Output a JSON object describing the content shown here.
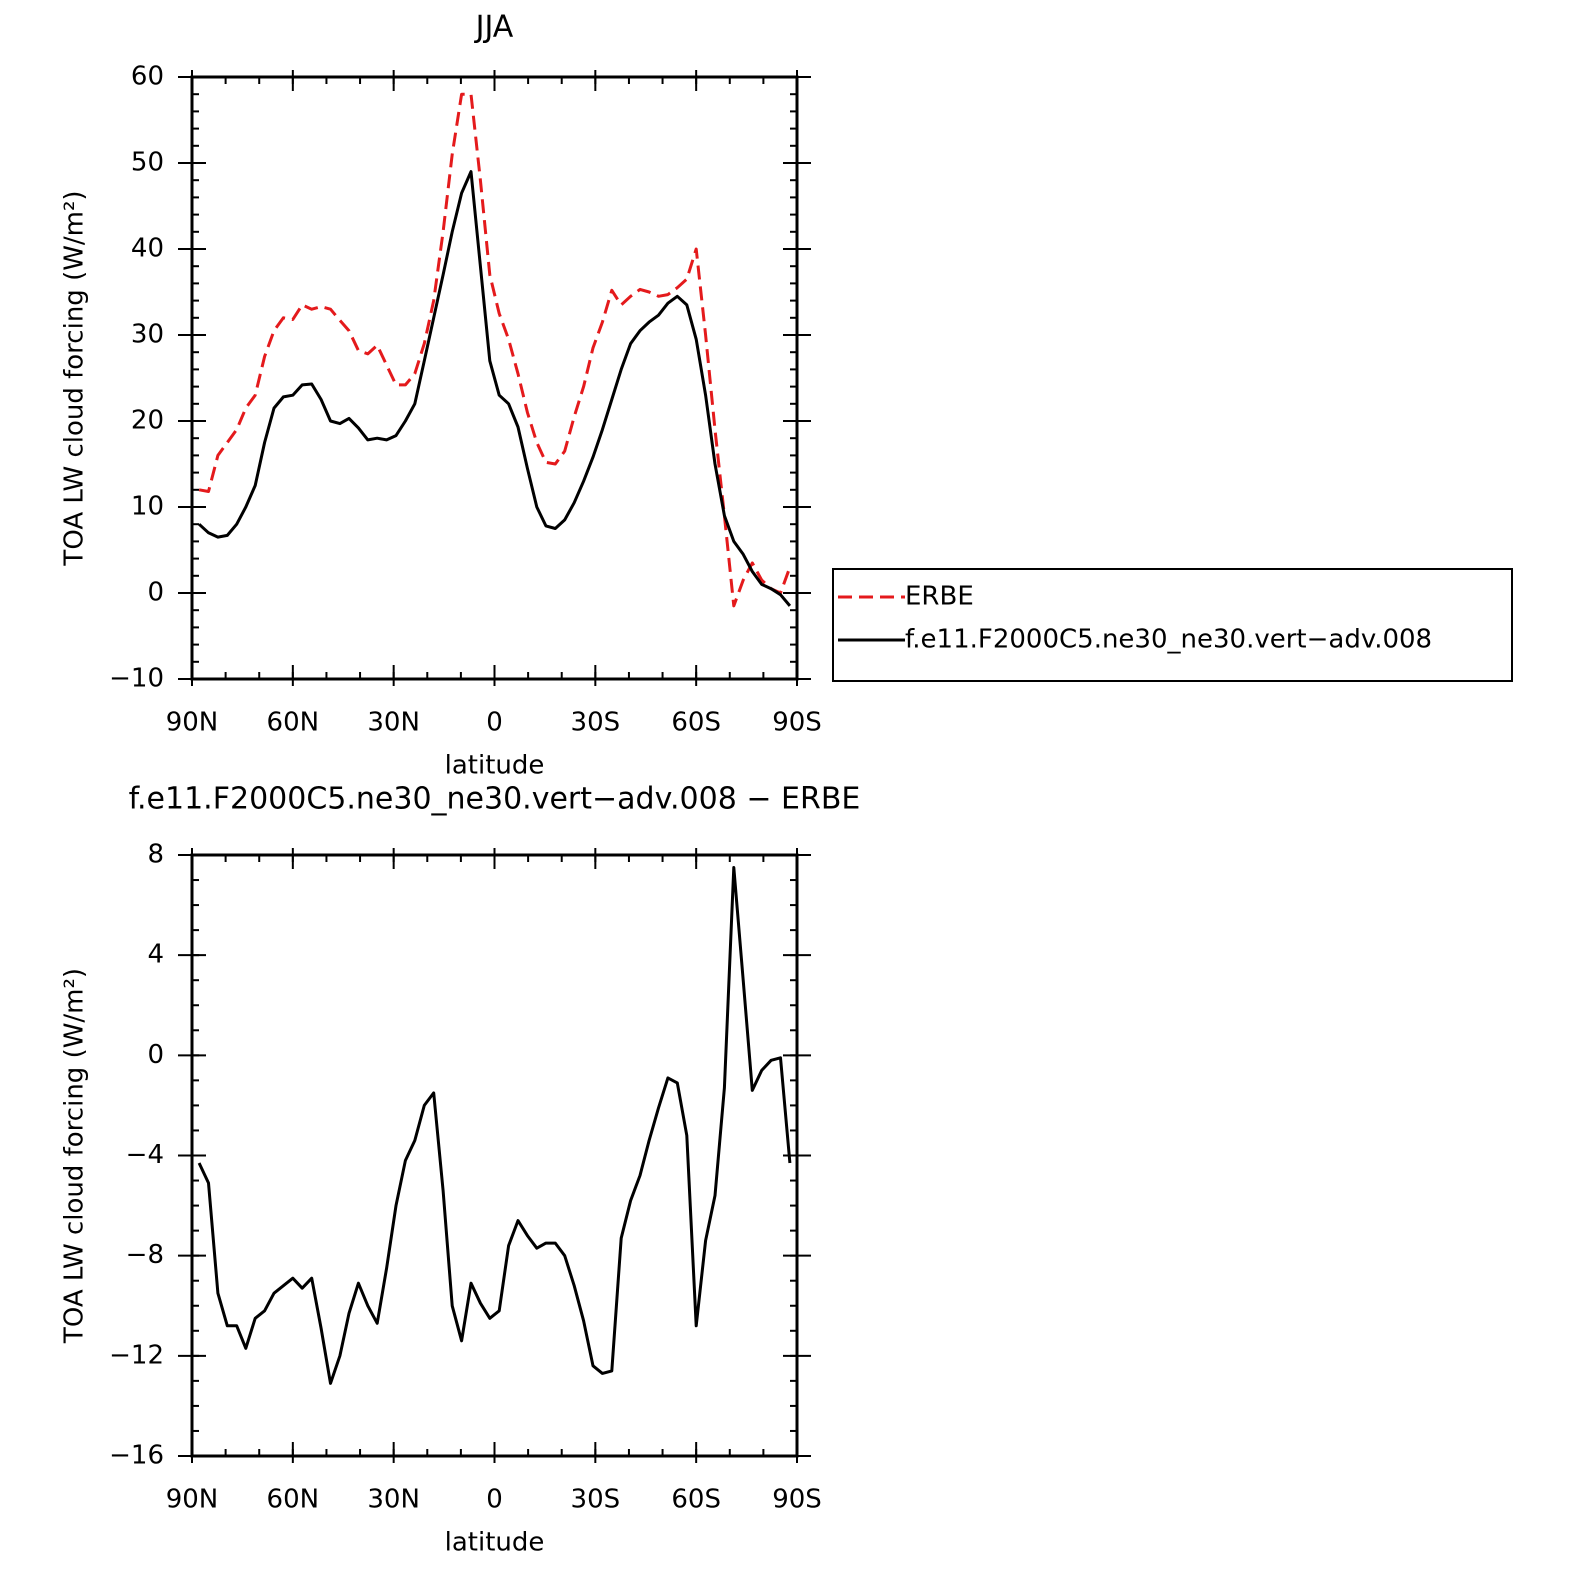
{
  "chart_data": [
    {
      "type": "line",
      "title": "JJA",
      "xlabel": "latitude",
      "ylabel": "TOA LW cloud forcing (W/m²)",
      "xlim": [
        90,
        -90
      ],
      "xticks": [
        {
          "value": 90,
          "label": "90N"
        },
        {
          "value": 60,
          "label": "60N"
        },
        {
          "value": 30,
          "label": "30N"
        },
        0,
        {
          "value": -30,
          "label": "30S"
        },
        {
          "value": -60,
          "label": "60S"
        },
        {
          "value": -90,
          "label": "90S"
        }
      ],
      "ylim": [
        -10,
        60
      ],
      "yticks": [
        {
          "value": -10,
          "label": "−10"
        },
        0,
        10,
        20,
        30,
        40,
        50,
        60
      ],
      "minor_tick_step": {
        "x": 10,
        "y": 2
      },
      "legend": "right",
      "x": [
        87.9,
        85.1,
        82.3,
        79.5,
        76.7,
        74.0,
        71.2,
        68.4,
        65.6,
        62.8,
        60.0,
        57.2,
        54.4,
        51.6,
        48.8,
        46.0,
        43.3,
        40.5,
        37.7,
        34.9,
        32.1,
        29.3,
        26.5,
        23.7,
        20.9,
        18.1,
        15.3,
        12.6,
        9.8,
        7.0,
        4.2,
        1.4,
        -1.4,
        -4.2,
        -7.0,
        -9.8,
        -12.6,
        -15.3,
        -18.1,
        -20.9,
        -23.7,
        -26.5,
        -29.3,
        -32.1,
        -34.9,
        -37.7,
        -40.5,
        -43.3,
        -46.0,
        -48.8,
        -51.6,
        -54.4,
        -57.2,
        -60.0,
        -62.8,
        -65.6,
        -68.4,
        -71.2,
        -74.0,
        -76.7,
        -79.5,
        -82.3,
        -85.1,
        -87.9
      ],
      "series": [
        {
          "name": "ERBE",
          "color": "#e41a1c",
          "dash": true,
          "values": [
            12,
            11.8,
            16,
            17.5,
            19,
            21.5,
            23,
            27.5,
            30.5,
            32,
            31.8,
            33.5,
            33,
            33.3,
            33,
            31.7,
            30.5,
            28.2,
            27.8,
            28.8,
            26.5,
            24.2,
            24.2,
            25.5,
            29,
            34,
            42,
            51,
            58,
            58,
            48,
            37,
            32.5,
            29.5,
            25.5,
            21,
            17.5,
            15.2,
            15,
            16.5,
            20.5,
            24,
            28.5,
            31.5,
            35.2,
            33.5,
            34.5,
            35.3,
            35,
            34.5,
            34.7,
            35.5,
            36.5,
            40,
            30,
            19,
            9,
            -1.5,
            1.5,
            3.5,
            1.5,
            0.5,
            0,
            3
          ]
        },
        {
          "name": "f.e11.F2000C5.ne30_ne30.vert−adv.008",
          "color": "#000000",
          "dash": false,
          "values": [
            8,
            7,
            6.5,
            6.7,
            8,
            10,
            12.5,
            17.5,
            21.5,
            22.8,
            23,
            24.2,
            24.3,
            22.5,
            20,
            19.7,
            20.3,
            19.2,
            17.8,
            18,
            17.8,
            18.3,
            20,
            22,
            27,
            32,
            37,
            42,
            46.5,
            49,
            38,
            27,
            23,
            22,
            19.3,
            14.5,
            10,
            7.8,
            7.5,
            8.5,
            10.5,
            13,
            15.8,
            19,
            22.5,
            26,
            29,
            30.5,
            31.5,
            32.3,
            33.7,
            34.5,
            33.5,
            29.5,
            23,
            15,
            9,
            6,
            4.5,
            2.5,
            1,
            0.5,
            -0.2,
            -1.5
          ]
        }
      ]
    },
    {
      "type": "line",
      "title": "f.e11.F2000C5.ne30_ne30.vert−adv.008 − ERBE",
      "xlabel": "latitude",
      "ylabel": "TOA LW cloud forcing (W/m²)",
      "xlim": [
        90,
        -90
      ],
      "xticks": [
        {
          "value": 90,
          "label": "90N"
        },
        {
          "value": 60,
          "label": "60N"
        },
        {
          "value": 30,
          "label": "30N"
        },
        0,
        {
          "value": -30,
          "label": "30S"
        },
        {
          "value": -60,
          "label": "60S"
        },
        {
          "value": -90,
          "label": "90S"
        }
      ],
      "ylim": [
        -16,
        8
      ],
      "yticks": [
        {
          "value": -16,
          "label": "−16"
        },
        {
          "value": -12,
          "label": "−12"
        },
        {
          "value": -8,
          "label": "−8"
        },
        {
          "value": -4,
          "label": "−4"
        },
        0,
        4,
        8
      ],
      "minor_tick_step": {
        "x": 10,
        "y": 1
      },
      "x": [
        87.9,
        85.1,
        82.3,
        79.5,
        76.7,
        74.0,
        71.2,
        68.4,
        65.6,
        62.8,
        60.0,
        57.2,
        54.4,
        51.6,
        48.8,
        46.0,
        43.3,
        40.5,
        37.7,
        34.9,
        32.1,
        29.3,
        26.5,
        23.7,
        20.9,
        18.1,
        15.3,
        12.6,
        9.8,
        7.0,
        4.2,
        1.4,
        -1.4,
        -4.2,
        -7.0,
        -9.8,
        -12.6,
        -15.3,
        -18.1,
        -20.9,
        -23.7,
        -26.5,
        -29.3,
        -32.1,
        -34.9,
        -37.7,
        -40.5,
        -43.3,
        -46.0,
        -48.8,
        -51.6,
        -54.4,
        -57.2,
        -60.0,
        -62.8,
        -65.6,
        -68.4,
        -71.2,
        -74.0,
        -76.7,
        -79.5,
        -82.3,
        -85.1,
        -87.9
      ],
      "series": [
        {
          "color": "#000000",
          "dash": false,
          "values": [
            -4.3,
            -5.1,
            -9.5,
            -10.8,
            -10.8,
            -11.7,
            -10.5,
            -10.2,
            -9.5,
            -9.2,
            -8.9,
            -9.3,
            -8.9,
            -10.9,
            -13.1,
            -12,
            -10.3,
            -9.1,
            -10,
            -10.7,
            -8.5,
            -6,
            -4.2,
            -3.4,
            -2,
            -1.5,
            -5.4,
            -10,
            -11.4,
            -9.1,
            -9.9,
            -10.5,
            -10.2,
            -7.6,
            -6.6,
            -7.2,
            -7.7,
            -7.5,
            -7.5,
            -8,
            -9.2,
            -10.6,
            -12.4,
            -12.7,
            -12.6,
            -7.3,
            -5.8,
            -4.8,
            -3.4,
            -2.1,
            -0.9,
            -1.1,
            -3.2,
            -10.8,
            -7.4,
            -5.6,
            -1.3,
            7.5,
            3,
            -1.4,
            -0.6,
            -0.2,
            -0.1,
            -4.3
          ]
        }
      ]
    }
  ]
}
